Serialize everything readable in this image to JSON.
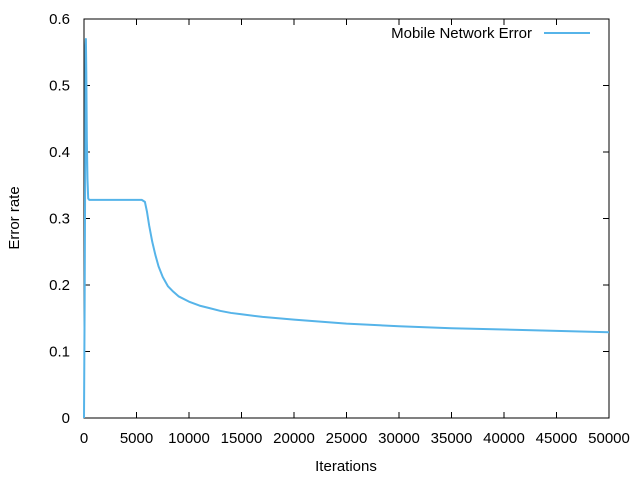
{
  "chart_data": {
    "type": "line",
    "xlabel": "Iterations",
    "ylabel": "Error rate",
    "xlim": [
      0,
      50000
    ],
    "ylim": [
      0,
      0.6
    ],
    "x_ticks": [
      0,
      5000,
      10000,
      15000,
      20000,
      25000,
      30000,
      35000,
      40000,
      45000,
      50000
    ],
    "y_ticks": [
      0,
      0.1,
      0.2,
      0.3,
      0.4,
      0.5,
      0.6
    ],
    "grid": false,
    "legend_position": "top-right",
    "series": [
      {
        "name": "Mobile Network Error",
        "color": "#56b4e9",
        "x": [
          0,
          60,
          120,
          150,
          180,
          220,
          270,
          330,
          400,
          500,
          700,
          1000,
          2000,
          3000,
          4000,
          5000,
          5500,
          5800,
          6000,
          6200,
          6500,
          6800,
          7100,
          7500,
          8000,
          8500,
          9000,
          10000,
          11000,
          12000,
          13000,
          14000,
          15000,
          17000,
          20000,
          25000,
          30000,
          35000,
          40000,
          45000,
          50000
        ],
        "y": [
          0.0,
          0.17,
          0.4,
          0.56,
          0.57,
          0.52,
          0.42,
          0.36,
          0.33,
          0.328,
          0.328,
          0.328,
          0.328,
          0.328,
          0.328,
          0.328,
          0.328,
          0.325,
          0.31,
          0.29,
          0.265,
          0.245,
          0.228,
          0.212,
          0.198,
          0.19,
          0.183,
          0.175,
          0.169,
          0.165,
          0.161,
          0.158,
          0.156,
          0.152,
          0.148,
          0.142,
          0.138,
          0.135,
          0.133,
          0.131,
          0.129
        ]
      }
    ]
  }
}
